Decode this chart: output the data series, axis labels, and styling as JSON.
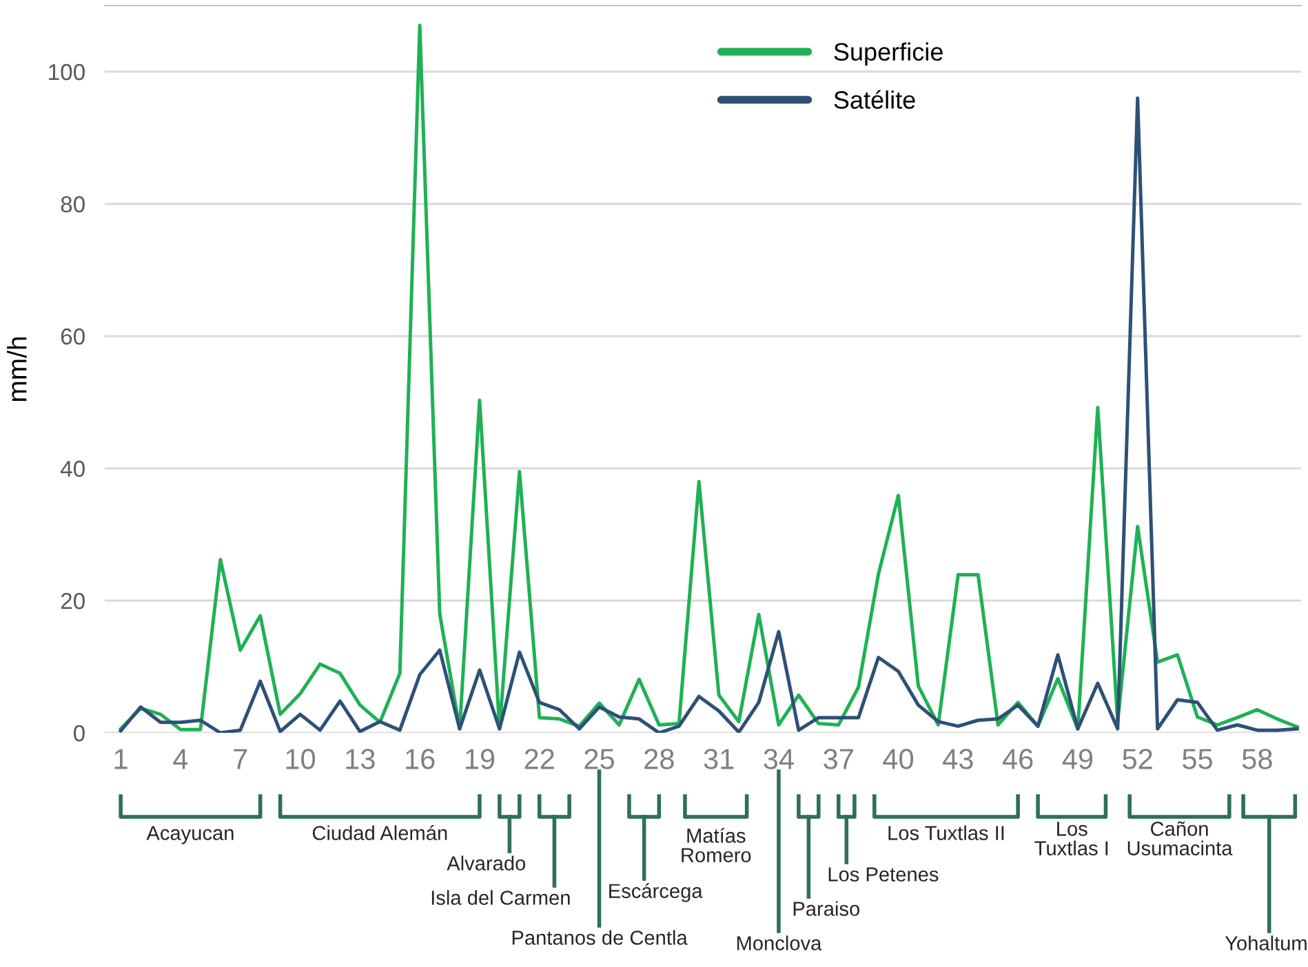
{
  "chart_data": {
    "type": "line",
    "ylabel": "mm/h",
    "x": [
      1,
      2,
      3,
      4,
      5,
      6,
      7,
      8,
      9,
      10,
      11,
      12,
      13,
      14,
      15,
      16,
      17,
      18,
      19,
      20,
      21,
      22,
      23,
      24,
      25,
      26,
      27,
      28,
      29,
      30,
      31,
      32,
      33,
      34,
      35,
      36,
      37,
      38,
      39,
      40,
      41,
      42,
      43,
      44,
      45,
      46,
      47,
      48,
      49,
      50,
      51,
      52,
      53,
      54,
      55,
      56,
      57,
      58,
      59,
      60
    ],
    "series": [
      {
        "name": "Superficie",
        "color": "#1fb155",
        "values": [
          0.6,
          3.7,
          2.8,
          0.5,
          0.5,
          26.2,
          12.5,
          17.7,
          2.8,
          5.9,
          10.4,
          9,
          4.2,
          1.6,
          9,
          107,
          18,
          0.6,
          50.3,
          0.6,
          39.5,
          2.3,
          2.1,
          1,
          4.5,
          1.2,
          8.1,
          1.2,
          1.4,
          38,
          5.7,
          1.7,
          17.9,
          1.2,
          5.7,
          1.4,
          1.2,
          6.9,
          24,
          35.9,
          7.1,
          1.2,
          23.9,
          23.9,
          1.2,
          4.6,
          1,
          8.2,
          0.6,
          49.2,
          1.7,
          31.2,
          10.7,
          11.8,
          2.4,
          1.2,
          2.3,
          3.5,
          2.1,
          0.9
        ]
      },
      {
        "name": "Satélite",
        "color": "#2e5077",
        "values": [
          0.3,
          3.9,
          1.6,
          1.6,
          1.9,
          0,
          0.4,
          7.8,
          0.2,
          2.8,
          0.4,
          4.8,
          0.2,
          1.7,
          0.4,
          8.8,
          12.5,
          0.6,
          9.5,
          0.6,
          12.2,
          4.6,
          3.5,
          0.6,
          3.9,
          2.4,
          2.1,
          0,
          1,
          5.5,
          3.3,
          0.1,
          4.6,
          15.3,
          0.4,
          2.3,
          2.3,
          2.3,
          11.4,
          9.3,
          4.2,
          1.7,
          1,
          1.9,
          2.1,
          4.2,
          1,
          11.8,
          0.6,
          7.5,
          0.6,
          96,
          0.6,
          5,
          4.6,
          0.4,
          1.2,
          0.4,
          0.4,
          0.6
        ]
      }
    ],
    "xlim": [
      0.2,
      60.2
    ],
    "ylim": [
      0,
      110
    ],
    "xticks": [
      1,
      4,
      7,
      10,
      13,
      16,
      19,
      22,
      25,
      28,
      31,
      34,
      37,
      40,
      43,
      46,
      49,
      52,
      55,
      58
    ],
    "yticks": [
      0,
      20,
      40,
      60,
      80,
      100
    ],
    "grid": "y",
    "legend": "top right",
    "marker": "none",
    "line_style": "solid",
    "annotations": [
      "Acayucan",
      "Ciudad Alemán",
      "Alvarado",
      "Isla del Carmen",
      "Pantanos de Centla",
      "Escárcega",
      "Matías\nRomero",
      "Monclova",
      "Paraiso",
      "Los Petenes",
      "Los Tuxtlas II",
      "Los\nTuxtlas I",
      "Cañon\nUsumacinta",
      "Yohaltum"
    ]
  }
}
